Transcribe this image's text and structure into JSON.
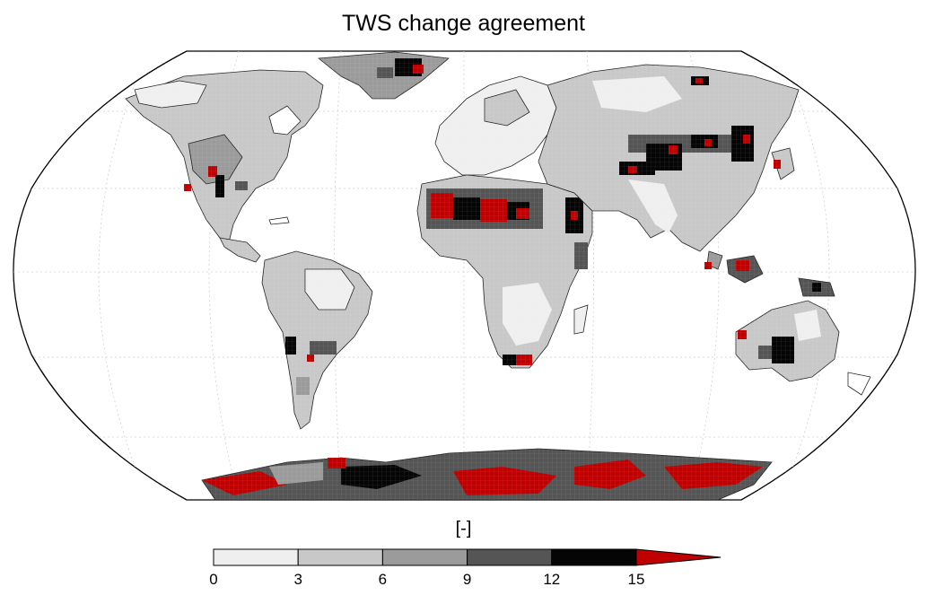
{
  "title": "TWS change agreement",
  "colorbar": {
    "label": "[-]",
    "ticks": [
      "0",
      "3",
      "6",
      "9",
      "12",
      "15"
    ],
    "bins": [
      {
        "from": 0,
        "to": 3,
        "color": "#efefef"
      },
      {
        "from": 3,
        "to": 6,
        "color": "#c8c8c8"
      },
      {
        "from": 6,
        "to": 9,
        "color": "#9b9b9b"
      },
      {
        "from": 9,
        "to": 12,
        "color": "#555555"
      },
      {
        "from": 12,
        "to": 15,
        "color": "#050505"
      },
      {
        "from": 15,
        "to": null,
        "color": "#c00000"
      }
    ],
    "extend": "max"
  }
}
